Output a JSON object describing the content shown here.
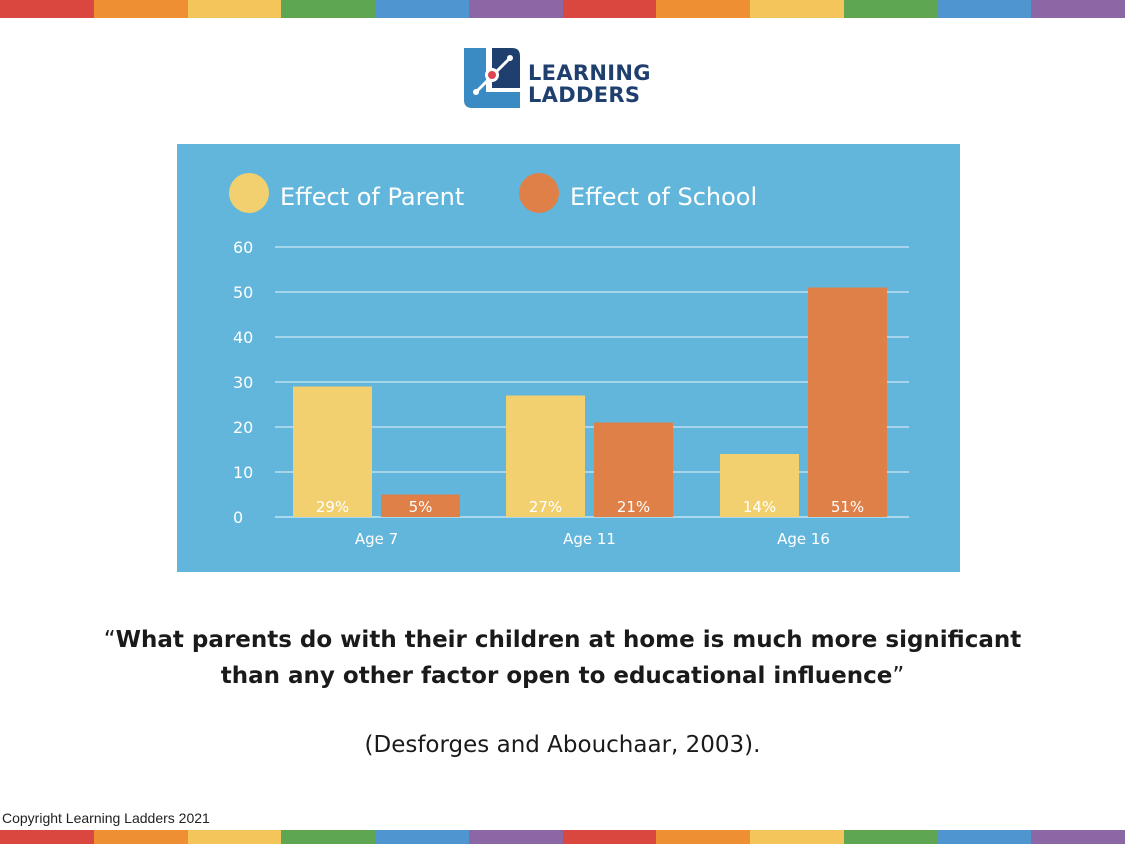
{
  "colors": {
    "stripe": [
      "#d9473f",
      "#ee8f34",
      "#f3c55a",
      "#5fa653",
      "#4f95cf",
      "#8c67a6"
    ],
    "panel_bg": "#62b6dc",
    "parent": "#f2d06f",
    "school": "#df8049",
    "logo_navy": "#1f3f6e",
    "logo_blue": "#3a8ac4"
  },
  "logo": {
    "line1": "LEARNING",
    "line2": "LADDERS"
  },
  "chart_data": {
    "type": "bar",
    "categories": [
      "Age 7",
      "Age 11",
      "Age 16"
    ],
    "series": [
      {
        "name": "Effect of Parent",
        "values": [
          29,
          27,
          14
        ],
        "labels": [
          "29%",
          "27%",
          "14%"
        ]
      },
      {
        "name": "Effect of School",
        "values": [
          5,
          21,
          51
        ],
        "labels": [
          "5%",
          "21%",
          "51%"
        ]
      }
    ],
    "ylim": [
      0,
      60
    ],
    "yticks": [
      0,
      10,
      20,
      30,
      40,
      50,
      60
    ],
    "grid": true,
    "legend_position": "top"
  },
  "quote": {
    "open_mark": "“",
    "text": "What parents do with their children at home is much more significant than any other factor open to educational influence",
    "close_mark": "”"
  },
  "citation": "(Desforges and Abouchaar, 2003).",
  "copyright": "Copyright Learning Ladders 2021"
}
